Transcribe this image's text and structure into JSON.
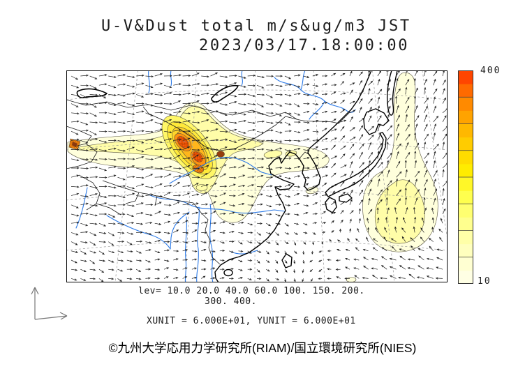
{
  "title": {
    "line1": "U-V&Dust total m/s&ug/m3 JST",
    "line2": "2023/03/17.18:00:00"
  },
  "map_data": {
    "type": "contour-map-with-vectors",
    "region": "East Asia",
    "variable": "Dust total concentration (ug/m3) with U-V wind vectors (m/s)",
    "levels": [
      10,
      20,
      40,
      60,
      100,
      150,
      200,
      300,
      400
    ],
    "levels_line1": "lev= 10.0 20.0 40.0 60.0 100. 150. 200.",
    "levels_line2": "300. 400.",
    "xunit_line": "XUNIT = 6.000E+01, YUNIT = 6.000E+01",
    "level_colors": {
      "10": "#FFFFDC",
      "20": "#FFFDA8",
      "40": "#FFF767",
      "60": "#FFE93A",
      "100": "#FFD42B",
      "150": "#FFB61C",
      "200": "#FF9210",
      "300": "#FF5A07"
    },
    "extra_colors": {
      "dark_core": "#9A4410",
      "hotspot_inner": "#8A3A10",
      "coast": "#000000",
      "border": "#1a1a1a",
      "river": "#2B79E6",
      "graticule": "#999999",
      "wind_arrow": "#1f1f1f",
      "contour_line": "#55503a"
    }
  },
  "colorbar": {
    "min_label": "10",
    "max_label": "400",
    "stops_bottom_to_top": [
      "#FFFFE4",
      "#FFFFD2",
      "#FFFFBE",
      "#FFFFA8",
      "#FFFF8E",
      "#FFFF70",
      "#FFFF4E",
      "#FFF728",
      "#FFEC00",
      "#FFDC00",
      "#FFCC00",
      "#FFB800",
      "#FFA300",
      "#FF8A00",
      "#FF6A00",
      "#FF4500"
    ],
    "internal_ticks": 7
  },
  "footer": {
    "copyright": "©九州大学応用力学研究所(RIAM)/国立環境研究所(NIES)"
  }
}
